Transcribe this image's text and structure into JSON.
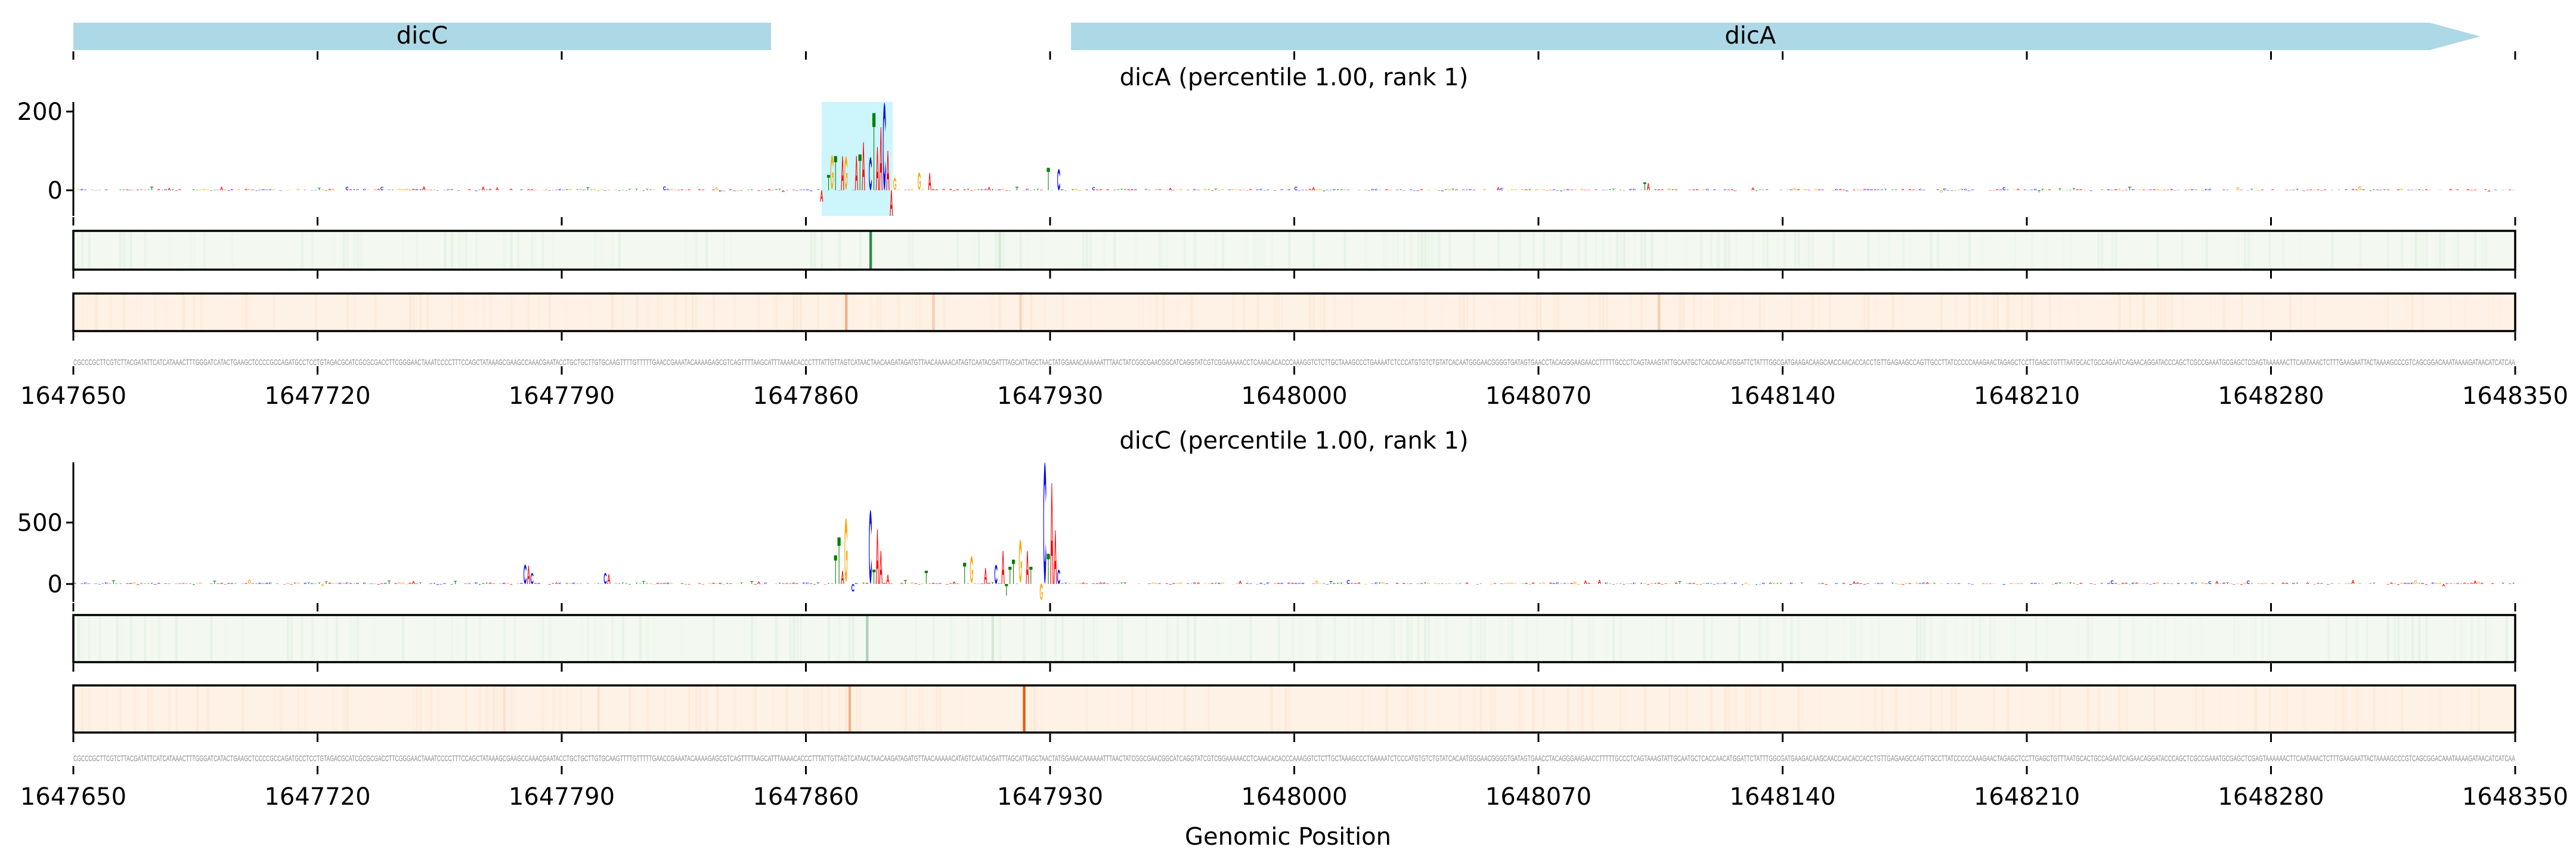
{
  "colors": {
    "A": "#ff0000",
    "C": "#0000ff",
    "G": "#ffa500",
    "T": "#008000",
    "gene": "#add8e6",
    "highlight": "#ccf5fc",
    "green_base": "#f3f9f1",
    "green_strong": "#2e8b45",
    "orange_base": "#fef2e6",
    "orange_strong": "#e3600c",
    "sequence": "#8a8a8a"
  },
  "genes": [
    {
      "name": "dicC",
      "start": 1647650,
      "end": 1647850,
      "strand": "-"
    },
    {
      "name": "dicA",
      "start": 1647936,
      "end": 1648340,
      "strand": "+"
    }
  ],
  "xaxis": {
    "label": "Genomic Position",
    "start": 1647650,
    "end": 1648350,
    "ticks": [
      "1647650",
      "1647720",
      "1647790",
      "1647860",
      "1647930",
      "1648000",
      "1648070",
      "1648140",
      "1648210",
      "1648280",
      "1648350"
    ]
  },
  "sequence": "CGCCCGCTTCGTCTTACGATATTCATCATAAACTTTGGGATCATACTGAAGCTCCCCGCCAGATGCCTCCTGTAGACGCATCGCGCGACCTTCGGGAACTAAATCCCCTTTCCAGCTATAAAGCGAAGCCAAACGAATACCTGCTGCTTGTGCAAGTTTTGTTTTTGAACCGAAATACAAAAGAGCGTCAGTTTTAAGCATTTAAAACACCCTTTATTGTTAGTCATAACTAACAAGATAGATGTTAACAAAAACATAGTCAATACGATTTAGCATTAGCTAACTATGGAAACAAAAAATTTAACTATCGGCGAACGGCATCAGGTATCGTCGGAAAAACCTCAAACACACCCAAAGGTCTCTTGCTAAAGCCCTGAAAATCTCCCATGTGTCTGTATCACAATGGGAACGGGGTGATAGTGAACCTACAGGGAAGAACCTTTTTGCCCTCAGTAAAGTATTGCAATGCTCACCAACATGGATTCTATTTGGCGATGAAGACAAGCAACCAACACCACCTGTTGAGAAGCCAGTTGCCTTATCCCCCAAAGAACTAGAGCTCCTTGAGCTGTTTAATGCACTGCCAGAATCAGAACAGGATACCCAGCTCGCCGAAATGCGAGCTCGAGTAAAAAACTTCAATAAACTCTTTGAAGAATTACTAAAAGCCCGTCAGCGGACAAATAAAAGATAACATCATCAA",
  "chart_data": [
    {
      "type": "bar",
      "title": "dicA (percentile 1.00, rank 1)",
      "xlabel": "Genomic Position",
      "ylabel": "",
      "ylim": [
        -65,
        225
      ],
      "yticks": [
        "0",
        "200"
      ],
      "ytick_values": [
        0,
        200
      ],
      "highlight_region": [
        1647864,
        1647884
      ],
      "noise_amplitude": 4,
      "peaks": [
        [
          1647864,
          "A",
          -29
        ],
        [
          1647866,
          "T",
          39
        ],
        [
          1647867,
          "G",
          87
        ],
        [
          1647868,
          "T",
          87
        ],
        [
          1647870,
          "A",
          87
        ],
        [
          1647871,
          "G",
          84
        ],
        [
          1647874,
          "A",
          87
        ],
        [
          1647875,
          "T",
          91
        ],
        [
          1647876,
          "A",
          122
        ],
        [
          1647878,
          "C",
          84
        ],
        [
          1647879,
          "T",
          196
        ],
        [
          1647880,
          "A",
          110
        ],
        [
          1647881,
          "A",
          160
        ],
        [
          1647882,
          "C",
          223
        ],
        [
          1647883,
          "A",
          100
        ],
        [
          1647884,
          "A",
          -65
        ],
        [
          1647885,
          "G",
          31
        ],
        [
          1647892,
          "G",
          44
        ],
        [
          1647895,
          "A",
          44
        ],
        [
          1647929,
          "T",
          57
        ],
        [
          1647932,
          "C",
          54
        ],
        [
          1648100,
          "T",
          20
        ],
        [
          1648101,
          "A",
          18
        ]
      ],
      "green_marks": [
        [
          1647878,
          1.0
        ],
        [
          1647915,
          0.15
        ]
      ],
      "orange_marks": [
        [
          1647871,
          0.45
        ],
        [
          1647896,
          0.25
        ],
        [
          1647921,
          0.2
        ],
        [
          1648104,
          0.25
        ]
      ]
    },
    {
      "type": "bar",
      "title": "dicC (percentile 1.00, rank 1)",
      "xlabel": "Genomic Position",
      "ylabel": "",
      "ylim": [
        -146,
        990
      ],
      "yticks": [
        "0",
        "500"
      ],
      "ytick_values": [
        0,
        500
      ],
      "noise_amplitude": 14,
      "peaks": [
        [
          1647779,
          "C",
          158
        ],
        [
          1647780,
          "A",
          150
        ],
        [
          1647781,
          "C",
          90
        ],
        [
          1647802,
          "C",
          90
        ],
        [
          1647803,
          "A",
          80
        ],
        [
          1647868,
          "T",
          233
        ],
        [
          1647869,
          "T",
          379
        ],
        [
          1647870,
          "A",
          108
        ],
        [
          1647871,
          "G",
          522
        ],
        [
          1647873,
          "C",
          -62
        ],
        [
          1647878,
          "C",
          603
        ],
        [
          1647879,
          "T",
          117
        ],
        [
          1647880,
          "A",
          444
        ],
        [
          1647881,
          "A",
          270
        ],
        [
          1647883,
          "A",
          76
        ],
        [
          1647894,
          "T",
          108
        ],
        [
          1647905,
          "T",
          173
        ],
        [
          1647907,
          "G",
          222
        ],
        [
          1647911,
          "A",
          130
        ],
        [
          1647914,
          "C",
          157
        ],
        [
          1647916,
          "A",
          270
        ],
        [
          1647917,
          "T",
          -94
        ],
        [
          1647918,
          "T",
          141
        ],
        [
          1647919,
          "T",
          198
        ],
        [
          1647921,
          "G",
          352
        ],
        [
          1647923,
          "A",
          270
        ],
        [
          1647924,
          "T",
          141
        ],
        [
          1647927,
          "G",
          -134
        ],
        [
          1647928,
          "C",
          991
        ],
        [
          1647929,
          "T",
          246
        ],
        [
          1647930,
          "A",
          821
        ],
        [
          1647931,
          "A",
          437
        ],
        [
          1647932,
          "C",
          117
        ]
      ],
      "green_marks": [
        [
          1647877,
          0.35
        ],
        [
          1647913,
          0.15
        ]
      ],
      "orange_marks": [
        [
          1647773,
          0.12
        ],
        [
          1647872,
          0.45
        ],
        [
          1647922,
          1.0
        ],
        [
          1647800,
          0.1
        ]
      ]
    }
  ]
}
